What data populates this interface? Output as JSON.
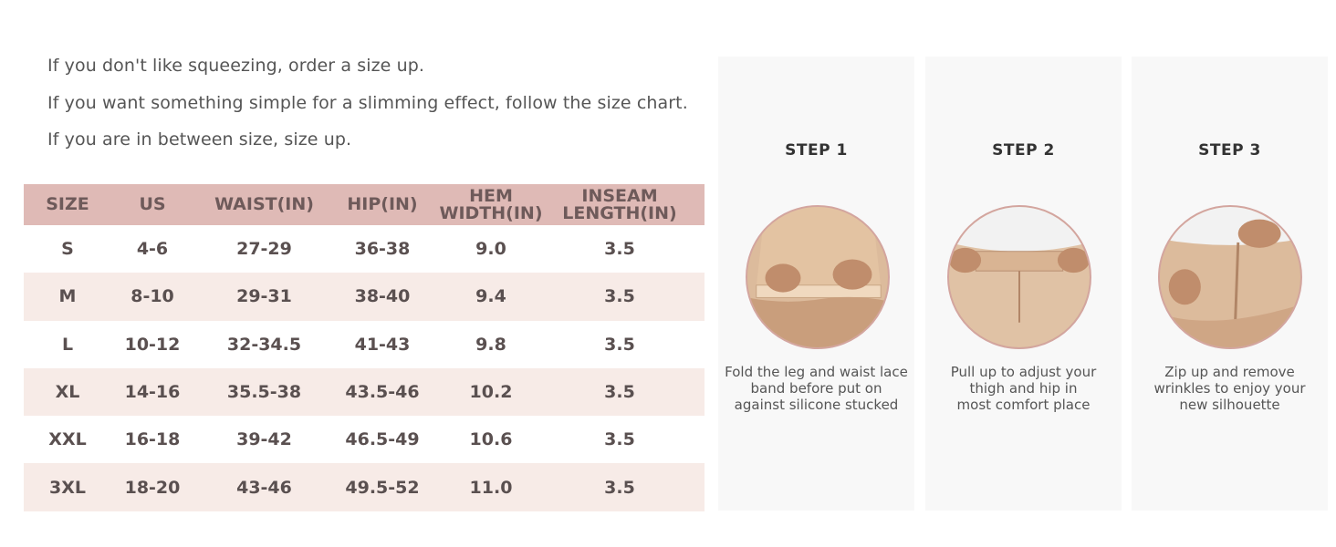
{
  "tips": [
    "If you don't like squeezing, order a size up.",
    "If you want something simple for a slimming effect, follow the size chart.",
    "If you are in between size, size up."
  ],
  "size_table": {
    "headers": [
      "SIZE",
      "US",
      "WAIST(IN)",
      "HIP(IN)",
      "HEM\nWIDTH(IN)",
      "INSEAM\nLENGTH(IN)"
    ],
    "rows": [
      [
        "S",
        "4-6",
        "27-29",
        "36-38",
        "9.0",
        "3.5"
      ],
      [
        "M",
        "8-10",
        "29-31",
        "38-40",
        "9.4",
        "3.5"
      ],
      [
        "L",
        "10-12",
        "32-34.5",
        "41-43",
        "9.8",
        "3.5"
      ],
      [
        "XL",
        "14-16",
        "35.5-38",
        "43.5-46",
        "10.2",
        "3.5"
      ],
      [
        "XXL",
        "16-18",
        "39-42",
        "46.5-49",
        "10.6",
        "3.5"
      ],
      [
        "3XL",
        "18-20",
        "43-46",
        "49.5-52",
        "11.0",
        "3.5"
      ]
    ]
  },
  "steps": [
    {
      "title": "STEP 1",
      "description": [
        "Fold the leg and waist lace",
        "band before put on",
        "against silicone stucked"
      ]
    },
    {
      "title": "STEP 2",
      "description": [
        "Pull up to adjust your",
        "thigh and hip in",
        "most comfort place"
      ]
    },
    {
      "title": "STEP 3",
      "description": [
        "Zip up and remove",
        "wrinkles to enjoy your",
        "new silhouette"
      ]
    }
  ],
  "colors": {
    "header_bg": "#dfbab6",
    "alt_row_bg": "#f7ebe7",
    "panel_bg": "#f8f8f8",
    "circle_border": "#d3a59f"
  }
}
